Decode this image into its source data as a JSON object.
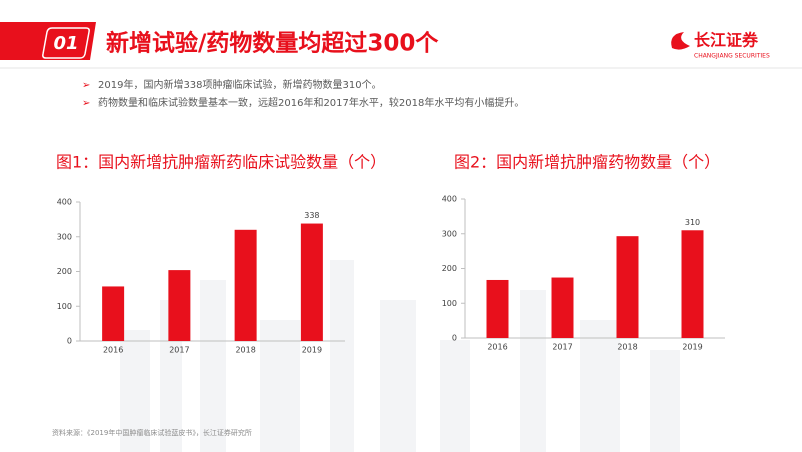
{
  "header": {
    "number": "01",
    "title": "新增试验/药物数量均超过300个"
  },
  "logo": {
    "name": "长江证券",
    "sub": "CHANGJIANG SECURITIES"
  },
  "bullets": [
    "2019年，国内新增338项肿瘤临床试验，新增药物数量310个。",
    "药物数量和临床试验数量基本一致，远超2016年和2017年水平，较2018年水平均有小幅提升。"
  ],
  "source": "资料来源：《2019年中国肿瘤临床试验蓝皮书》，长江证券研究所",
  "chart_data": [
    {
      "type": "bar",
      "title": "图1：国内新增抗肿瘤新药临床试验数量（个）",
      "categories": [
        "2016",
        "2017",
        "2018",
        "2019"
      ],
      "values": [
        157,
        204,
        320,
        338
      ],
      "value_labels": [
        null,
        null,
        null,
        "338"
      ],
      "color": "#e8101c",
      "ylim": [
        0,
        400
      ],
      "yticks": [
        0,
        100,
        200,
        300,
        400
      ],
      "grid": false
    },
    {
      "type": "bar",
      "title": "图2：国内新增抗肿瘤药物数量（个）",
      "categories": [
        "2016",
        "2017",
        "2018",
        "2019"
      ],
      "values": [
        167,
        174,
        293,
        310
      ],
      "value_labels": [
        null,
        null,
        null,
        "310"
      ],
      "color": "#e8101c",
      "ylim": [
        0,
        400
      ],
      "yticks": [
        0,
        100,
        200,
        300,
        400
      ],
      "grid": false
    }
  ]
}
